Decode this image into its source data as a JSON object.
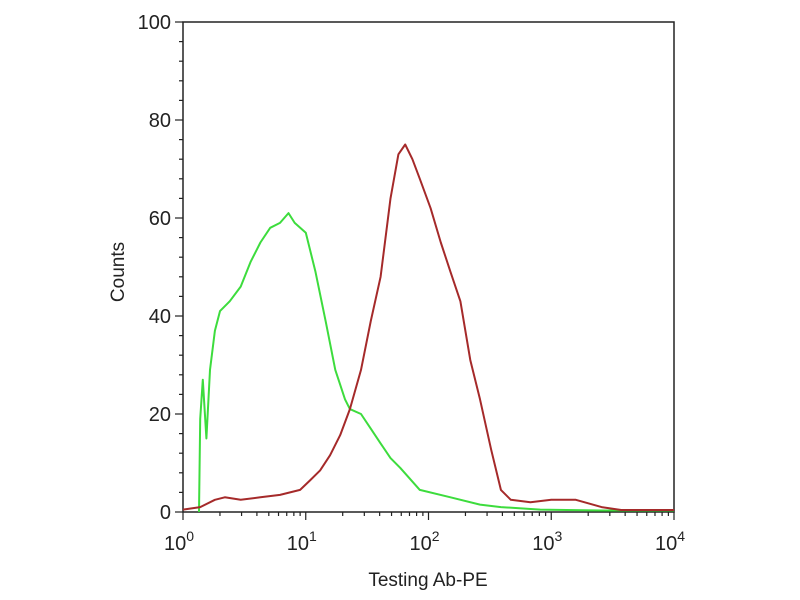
{
  "chart_data": {
    "type": "line",
    "title": "",
    "xlabel": "Testing Ab-PE",
    "ylabel": "Counts",
    "xscale": "log",
    "xlim": [
      1,
      10000
    ],
    "ylim": [
      0,
      100
    ],
    "grid": false,
    "legend": "none",
    "x_ticks": [
      {
        "base": "10",
        "exp": "0"
      },
      {
        "base": "10",
        "exp": "1"
      },
      {
        "base": "10",
        "exp": "2"
      },
      {
        "base": "10",
        "exp": "3"
      },
      {
        "base": "10",
        "exp": "4"
      }
    ],
    "y_ticks": [
      "0",
      "20",
      "40",
      "60",
      "80",
      "100"
    ],
    "series": [
      {
        "color": "#3ddc3d",
        "x": [
          1.35,
          1.38,
          1.45,
          1.55,
          1.66,
          1.82,
          2.0,
          2.4,
          2.95,
          3.55,
          4.27,
          5.13,
          6.17,
          7.24,
          8.13,
          10,
          12,
          14.5,
          17.4,
          20.9,
          22.9,
          28.2,
          33.9,
          40.7,
          49,
          58.9,
          85,
          151,
          263,
          389,
          813,
          2570,
          10000
        ],
        "y": [
          0,
          19,
          27,
          15,
          29,
          37,
          41,
          43,
          46,
          51,
          55,
          58,
          59,
          61,
          59,
          57,
          49,
          39,
          29,
          23,
          21,
          20,
          17,
          14,
          11,
          9,
          4.5,
          3,
          1.5,
          1,
          0.5,
          0.3,
          0.3
        ]
      },
      {
        "color": "#a52a2a",
        "x": [
          1,
          1.38,
          1.82,
          2.19,
          2.95,
          4.27,
          6.17,
          9.0,
          10.9,
          13.1,
          15.8,
          19.1,
          22.9,
          28.2,
          33.9,
          40.7,
          49,
          56.9,
          64.6,
          74,
          85,
          104,
          126,
          151,
          182,
          219,
          263,
          324,
          389,
          468,
          676,
          1000,
          1585,
          2570,
          3715,
          10000
        ],
        "y": [
          0.5,
          1,
          2.5,
          3,
          2.5,
          3,
          3.5,
          4.5,
          6.5,
          8.5,
          11.6,
          15.7,
          21,
          29,
          39,
          48,
          64,
          73,
          75,
          72,
          68,
          62,
          55,
          49,
          43,
          31,
          23,
          12.7,
          4.5,
          2.5,
          2,
          2.5,
          2.5,
          1,
          0.4,
          0.4
        ]
      }
    ]
  }
}
